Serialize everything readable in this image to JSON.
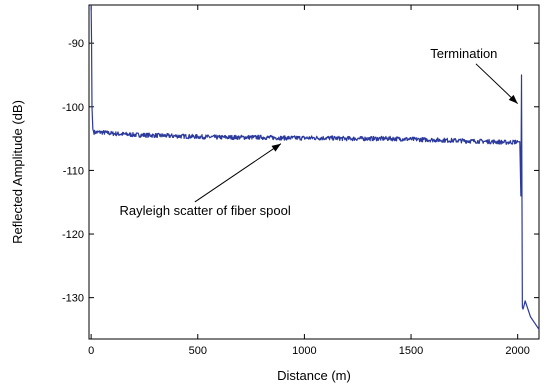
{
  "chart_data": {
    "type": "line",
    "title": "",
    "xlabel": "Distance (m)",
    "ylabel": "Reflected Amplitude (dB)",
    "xlim": [
      -10,
      2100
    ],
    "ylim": [
      -136.5,
      -84
    ],
    "xticks": [
      0,
      500,
      1000,
      1500,
      2000
    ],
    "yticks": [
      -90,
      -100,
      -110,
      -120,
      -130
    ],
    "grid": false,
    "legend": "none",
    "series": [
      {
        "color": "#2b3a9c",
        "x": [
          0,
          2,
          4,
          8,
          12,
          20,
          50,
          100,
          200,
          300,
          400,
          500,
          600,
          700,
          800,
          900,
          1000,
          1100,
          1200,
          1300,
          1400,
          1500,
          1600,
          1700,
          1800,
          1900,
          1950,
          2000,
          2010,
          2015,
          2018,
          2020,
          2022,
          2025,
          2028,
          2035,
          2045,
          2060,
          2080,
          2100
        ],
        "y": [
          -84,
          -90,
          -100,
          -103.5,
          -104,
          -104,
          -104,
          -104.2,
          -104.4,
          -104.5,
          -104.6,
          -104.7,
          -104.8,
          -104.8,
          -104.8,
          -104.9,
          -104.9,
          -104.9,
          -105,
          -105,
          -105,
          -105.1,
          -105.2,
          -105.3,
          -105.4,
          -105.5,
          -105.6,
          -105.5,
          -105.5,
          -114,
          -95,
          -113,
          -131.5,
          -131.8,
          -131.5,
          -130.5,
          -131.5,
          -133,
          -134,
          -135
        ]
      }
    ],
    "annotations": [
      {
        "text": "Termination",
        "x": 1590,
        "y": -92.3,
        "arrow_to": [
          2000,
          -99.5
        ]
      },
      {
        "text": "Rayleigh scatter of fiber spool",
        "x": 133,
        "y": -117,
        "arrow_to": [
          890,
          -105.8
        ]
      }
    ]
  }
}
